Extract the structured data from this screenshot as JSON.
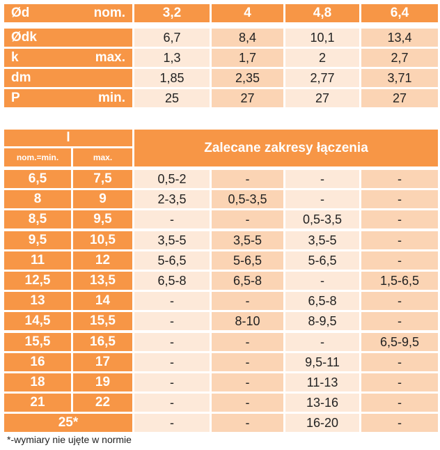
{
  "colors": {
    "header": "#f79646",
    "row_light": "#fde9d9",
    "row_dark": "#fbd4b4",
    "text": "#222222"
  },
  "table1": {
    "header": {
      "label": "Ød",
      "qualifier": "nom.",
      "values": [
        "3,2",
        "4",
        "4,8",
        "6,4"
      ]
    },
    "rows": [
      {
        "label": "Ødk",
        "qualifier": "",
        "values": [
          "6,7",
          "8,4",
          "10,1",
          "13,4"
        ]
      },
      {
        "label": "k",
        "qualifier": "max.",
        "values": [
          "1,3",
          "1,7",
          "2",
          "2,7"
        ]
      },
      {
        "label": "dm",
        "qualifier": "",
        "values": [
          "1,85",
          "2,35",
          "2,77",
          "3,71"
        ]
      },
      {
        "label": "P",
        "qualifier": "min.",
        "values": [
          "25",
          "27",
          "27",
          "27"
        ]
      }
    ]
  },
  "table2": {
    "l_label": "l",
    "nom_label": "nom.=min.",
    "max_label": "max.",
    "range_title": "Zalecane zakresy łączenia",
    "rows": [
      {
        "nom": "6,5",
        "max": "7,5",
        "values": [
          "0,5-2",
          "-",
          "-",
          "-"
        ]
      },
      {
        "nom": "8",
        "max": "9",
        "values": [
          "2-3,5",
          "0,5-3,5",
          "-",
          "-"
        ]
      },
      {
        "nom": "8,5",
        "max": "9,5",
        "values": [
          "-",
          "-",
          "0,5-3,5",
          "-"
        ]
      },
      {
        "nom": "9,5",
        "max": "10,5",
        "values": [
          "3,5-5",
          "3,5-5",
          "3,5-5",
          "-"
        ]
      },
      {
        "nom": "11",
        "max": "12",
        "values": [
          "5-6,5",
          "5-6,5",
          "5-6,5",
          "-"
        ]
      },
      {
        "nom": "12,5",
        "max": "13,5",
        "values": [
          "6,5-8",
          "6,5-8",
          "-",
          "1,5-6,5"
        ]
      },
      {
        "nom": "13",
        "max": "14",
        "values": [
          "-",
          "-",
          "6,5-8",
          "-"
        ]
      },
      {
        "nom": "14,5",
        "max": "15,5",
        "values": [
          "-",
          "8-10",
          "8-9,5",
          "-"
        ]
      },
      {
        "nom": "15,5",
        "max": "16,5",
        "values": [
          "-",
          "-",
          "-",
          "6,5-9,5"
        ]
      },
      {
        "nom": "16",
        "max": "17",
        "values": [
          "-",
          "-",
          "9,5-11",
          "-"
        ]
      },
      {
        "nom": "18",
        "max": "19",
        "values": [
          "-",
          "-",
          "11-13",
          "-"
        ]
      },
      {
        "nom": "21",
        "max": "22",
        "values": [
          "-",
          "-",
          "13-16",
          "-"
        ]
      },
      {
        "nom": "25*",
        "max": "",
        "merged": true,
        "values": [
          "-",
          "-",
          "16-20",
          "-"
        ]
      }
    ]
  },
  "footnote": "*-wymiary nie ujęte w normie"
}
